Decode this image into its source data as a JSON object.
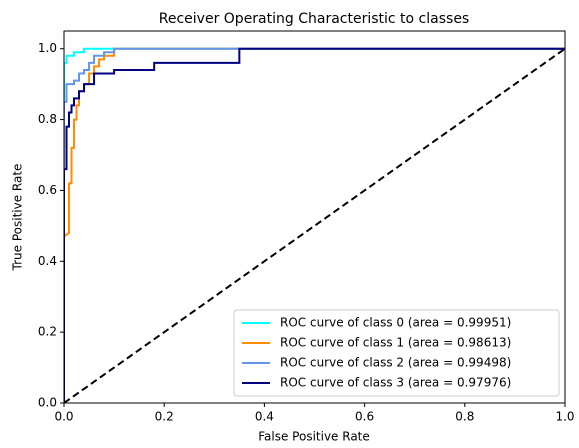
{
  "chart_data": {
    "type": "line",
    "title": "Receiver Operating Characteristic to classes",
    "xlabel": "False Positive Rate",
    "ylabel": "True Positive Rate",
    "xlim": [
      0,
      1
    ],
    "ylim": [
      0,
      1.05
    ],
    "xticks": [
      {
        "value": 0,
        "label": "0.0"
      },
      0.2,
      0.4,
      0.6,
      0.8,
      {
        "value": 1,
        "label": "1.0"
      }
    ],
    "yticks": [
      {
        "value": 0,
        "label": "0.0"
      },
      0.2,
      0.4,
      0.6,
      0.8,
      {
        "value": 1,
        "label": "1.0"
      }
    ],
    "legend": "lower right",
    "series": [
      {
        "name": "ROC curve of class 0 (area = 0.99951)",
        "color": "#00ffff",
        "x": [
          0,
          0,
          0.005,
          0.005,
          0.02,
          0.02,
          0.04,
          0.04,
          1
        ],
        "values": [
          0,
          0.96,
          0.96,
          0.98,
          0.98,
          0.99,
          0.99,
          1.0,
          1.0
        ]
      },
      {
        "name": "ROC curve of class 1 (area = 0.98613)",
        "color": "#ff8c00",
        "x": [
          0,
          0,
          0.01,
          0.01,
          0.015,
          0.015,
          0.02,
          0.02,
          0.025,
          0.025,
          0.03,
          0.03,
          0.04,
          0.04,
          0.05,
          0.05,
          0.06,
          0.06,
          0.07,
          0.07,
          0.08,
          0.08,
          0.1,
          0.1,
          1
        ],
        "values": [
          0,
          0.47,
          0.48,
          0.62,
          0.62,
          0.72,
          0.72,
          0.8,
          0.8,
          0.84,
          0.84,
          0.88,
          0.88,
          0.9,
          0.9,
          0.93,
          0.93,
          0.95,
          0.95,
          0.97,
          0.97,
          0.98,
          0.98,
          1.0,
          1.0
        ]
      },
      {
        "name": "ROC curve of class 2 (area = 0.99498)",
        "color": "#6495ed",
        "x": [
          0,
          0,
          0.005,
          0.005,
          0.02,
          0.02,
          0.03,
          0.03,
          0.04,
          0.04,
          0.05,
          0.05,
          0.06,
          0.06,
          0.08,
          0.08,
          0.1,
          0.1,
          1
        ],
        "values": [
          0,
          0.85,
          0.85,
          0.9,
          0.9,
          0.91,
          0.91,
          0.93,
          0.93,
          0.94,
          0.94,
          0.96,
          0.96,
          0.98,
          0.98,
          0.99,
          0.99,
          1.0,
          1.0
        ]
      },
      {
        "name": "ROC curve of class 3 (area = 0.97976)",
        "color": "#000080",
        "x": [
          0,
          0,
          0.005,
          0.005,
          0.01,
          0.01,
          0.015,
          0.015,
          0.02,
          0.02,
          0.03,
          0.03,
          0.04,
          0.04,
          0.06,
          0.06,
          0.1,
          0.1,
          0.18,
          0.18,
          0.35,
          0.35,
          1
        ],
        "values": [
          0,
          0.66,
          0.66,
          0.78,
          0.78,
          0.82,
          0.82,
          0.84,
          0.84,
          0.86,
          0.86,
          0.88,
          0.88,
          0.9,
          0.9,
          0.93,
          0.93,
          0.94,
          0.94,
          0.96,
          0.96,
          1.0,
          1.0
        ]
      }
    ],
    "reference_line": {
      "color": "#000000",
      "x": [
        0,
        1
      ],
      "values": [
        0,
        1
      ]
    }
  }
}
